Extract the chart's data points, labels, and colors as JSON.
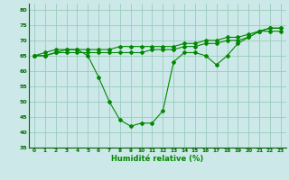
{
  "title": "",
  "xlabel": "Humidité relative (%)",
  "ylabel": "",
  "background_color": "#cce8e8",
  "grid_color": "#99ccbb",
  "line_color": "#008800",
  "xlim": [
    -0.5,
    23.5
  ],
  "ylim": [
    35,
    82
  ],
  "yticks": [
    35,
    40,
    45,
    50,
    55,
    60,
    65,
    70,
    75,
    80
  ],
  "xticks": [
    0,
    1,
    2,
    3,
    4,
    5,
    6,
    7,
    8,
    9,
    10,
    11,
    12,
    13,
    14,
    15,
    16,
    17,
    18,
    19,
    20,
    21,
    22,
    23
  ],
  "x": [
    0,
    1,
    2,
    3,
    4,
    5,
    6,
    7,
    8,
    9,
    10,
    11,
    12,
    13,
    14,
    15,
    16,
    17,
    18,
    19,
    20,
    21,
    22,
    23
  ],
  "line1": [
    65,
    66,
    67,
    67,
    67,
    65,
    58,
    50,
    44,
    42,
    43,
    43,
    47,
    63,
    66,
    66,
    65,
    62,
    65,
    69,
    71,
    73,
    73,
    73
  ],
  "line2": [
    65,
    65,
    66,
    66,
    66,
    66,
    66,
    66,
    66,
    66,
    66,
    67,
    67,
    67,
    68,
    68,
    69,
    69,
    70,
    70,
    71,
    73,
    74,
    74
  ],
  "line3": [
    65,
    65,
    66,
    67,
    67,
    67,
    67,
    67,
    68,
    68,
    68,
    68,
    68,
    68,
    69,
    69,
    70,
    70,
    71,
    71,
    72,
    73,
    74,
    74
  ]
}
